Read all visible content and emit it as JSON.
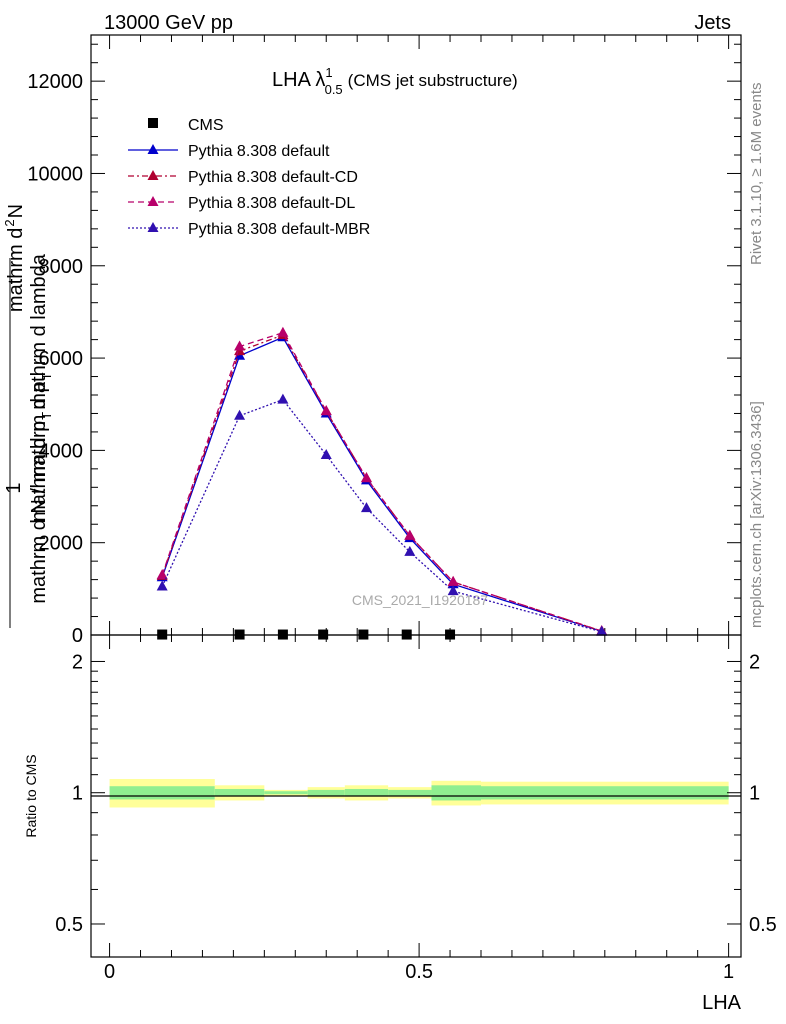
{
  "header": {
    "energy_label": "13000 GeV pp",
    "process_label": "Jets"
  },
  "side_labels": {
    "rivet": "Rivet 3.1.10, ≥ 1.6M events",
    "mcplots": "mcplots.cern.ch [arXiv:1306.3436]"
  },
  "watermark": "CMS_2021_I1920187",
  "chart_data": [
    {
      "type": "line",
      "title_main": "LHA λ",
      "title_sup": "1",
      "title_sub": "0.5",
      "title_suffix": "(CMS jet substructure)",
      "xlabel": "",
      "ylabel_top": "1",
      "ylabel_line1": "mathrm d N / mathrm d p",
      "ylabel_line1_sub": "T",
      "ylabel_line2": "mathrm d",
      "ylabel_line2_sup": "2",
      "ylabel_line3": "N",
      "ylabel_line4": "mathrm d p",
      "ylabel_line4_sub": "T",
      "ylabel_line5": "mathrm d lambda",
      "ylabel_lines": [
        "mathrm d N / mathrm d p",
        "mathrm d",
        "N",
        "mathrm d p",
        "mathrm d lambda"
      ],
      "xlim": [
        -0.03,
        1.02
      ],
      "ylim": [
        0,
        13000
      ],
      "yticks": [
        0,
        2000,
        4000,
        6000,
        8000,
        10000,
        12000
      ],
      "ytick_labels": [
        "0",
        "2000",
        "4000",
        "6000",
        "8000",
        "10000",
        "12000"
      ],
      "legend_position": "top-left",
      "legend": [
        {
          "name": "CMS",
          "color": "#000000",
          "style": "marker-square"
        },
        {
          "name": "Pythia 8.308 default",
          "color": "#0000cc",
          "style": "solid"
        },
        {
          "name": "Pythia 8.308 default-CD",
          "color": "#b00030",
          "style": "dashdot"
        },
        {
          "name": "Pythia 8.308 default-DL",
          "color": "#b8006a",
          "style": "dashed"
        },
        {
          "name": "Pythia 8.308 default-MBR",
          "color": "#3010b0",
          "style": "dotted"
        }
      ],
      "x": [
        0.085,
        0.21,
        0.28,
        0.35,
        0.415,
        0.485,
        0.555,
        0.795
      ],
      "series": [
        {
          "name": "CMS",
          "x": [
            0.085,
            0.21,
            0.28,
            0.345,
            0.41,
            0.48,
            0.55
          ],
          "values": [
            10,
            10,
            10,
            10,
            10,
            10,
            10
          ]
        },
        {
          "name": "Pythia 8.308 default",
          "values": [
            1250,
            6050,
            6450,
            4800,
            3350,
            2100,
            1100,
            80
          ]
        },
        {
          "name": "Pythia 8.308 default-CD",
          "values": [
            1280,
            6150,
            6500,
            4850,
            3400,
            2150,
            1150,
            85
          ]
        },
        {
          "name": "Pythia 8.308 default-DL",
          "values": [
            1300,
            6250,
            6550,
            4850,
            3400,
            2150,
            1150,
            85
          ]
        },
        {
          "name": "Pythia 8.308 default-MBR",
          "values": [
            1050,
            4750,
            5100,
            3900,
            2750,
            1800,
            950,
            70
          ]
        }
      ]
    },
    {
      "type": "area",
      "ylabel": "Ratio to CMS",
      "xlabel": "LHA",
      "xlim": [
        -0.03,
        1.02
      ],
      "ylim": [
        0.42,
        2.3
      ],
      "log_y": true,
      "xticks": [
        0,
        0.5,
        1
      ],
      "xtick_labels": [
        "0",
        "0.5",
        "1"
      ],
      "yticks": [
        0.5,
        1,
        2
      ],
      "ytick_labels": [
        "0.5",
        "1",
        "2"
      ],
      "bins": [
        {
          "lo": 0.0,
          "hi": 0.17,
          "stat": 0.035,
          "tot": 0.075
        },
        {
          "lo": 0.17,
          "hi": 0.25,
          "stat": 0.02,
          "tot": 0.04
        },
        {
          "lo": 0.25,
          "hi": 0.32,
          "stat": 0.008,
          "tot": 0.015
        },
        {
          "lo": 0.32,
          "hi": 0.38,
          "stat": 0.015,
          "tot": 0.03
        },
        {
          "lo": 0.38,
          "hi": 0.45,
          "stat": 0.02,
          "tot": 0.04
        },
        {
          "lo": 0.45,
          "hi": 0.52,
          "stat": 0.015,
          "tot": 0.03
        },
        {
          "lo": 0.52,
          "hi": 0.6,
          "stat": 0.04,
          "tot": 0.065
        },
        {
          "lo": 0.6,
          "hi": 1.0,
          "stat": 0.035,
          "tot": 0.06
        }
      ],
      "band_colors": {
        "stat": "#90ee90",
        "total": "#ffff99"
      }
    }
  ]
}
